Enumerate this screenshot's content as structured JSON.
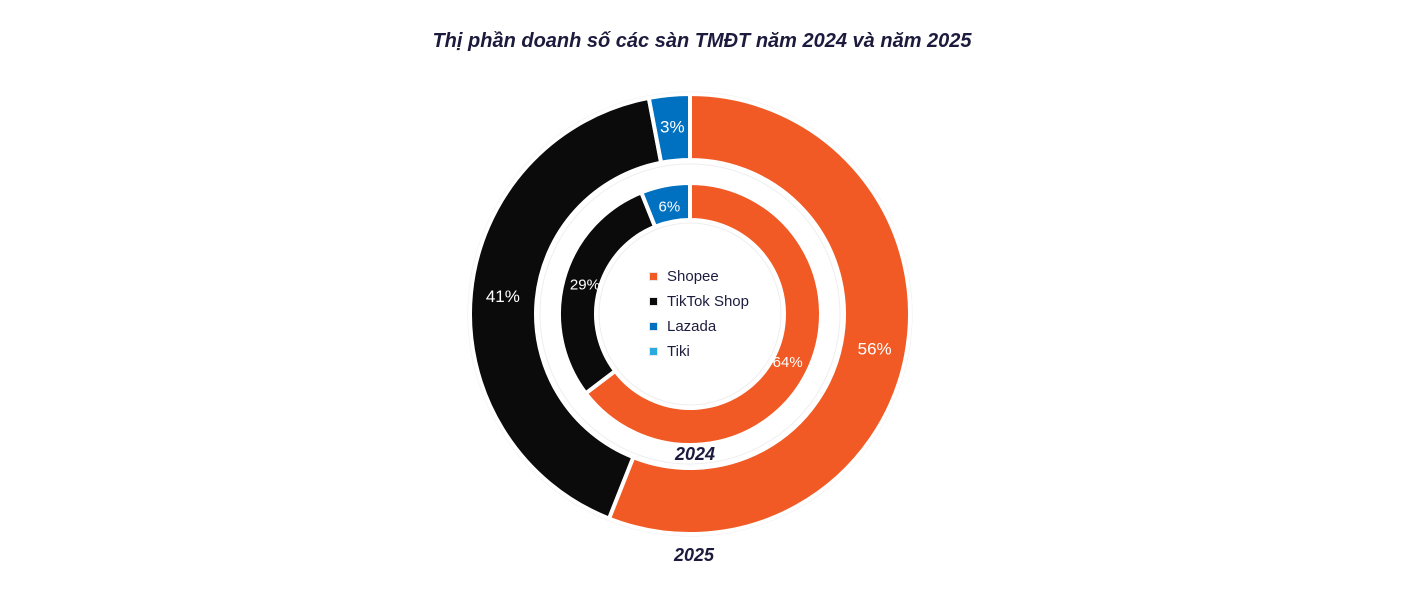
{
  "title": "Thị phần doanh số các sàn TMĐT năm 2024 và năm 2025",
  "chart_data": {
    "type": "pie",
    "title": "Thị phần doanh số các sàn TMĐT năm 2024 và năm 2025",
    "categories": [
      "Shopee",
      "TikTok Shop",
      "Lazada",
      "Tiki"
    ],
    "colors": [
      "#f15a24",
      "#0b0b0b",
      "#0070c0",
      "#29abe2"
    ],
    "series": [
      {
        "name": "2024",
        "ring": "inner",
        "values": [
          64,
          29,
          6,
          0
        ],
        "labels": [
          "64%",
          "29%",
          "6%",
          ""
        ]
      },
      {
        "name": "2025",
        "ring": "outer",
        "values": [
          56,
          41,
          3,
          0
        ],
        "labels": [
          "56%",
          "41%",
          "3%",
          ""
        ]
      }
    ],
    "legend_position": "center"
  },
  "legend": [
    {
      "label": "Shopee",
      "color": "#f15a24"
    },
    {
      "label": "TikTok Shop",
      "color": "#0b0b0b"
    },
    {
      "label": "Lazada",
      "color": "#0070c0"
    },
    {
      "label": "Tiki",
      "color": "#29abe2"
    }
  ],
  "ring_labels": {
    "inner": "2024",
    "outer": "2025"
  }
}
